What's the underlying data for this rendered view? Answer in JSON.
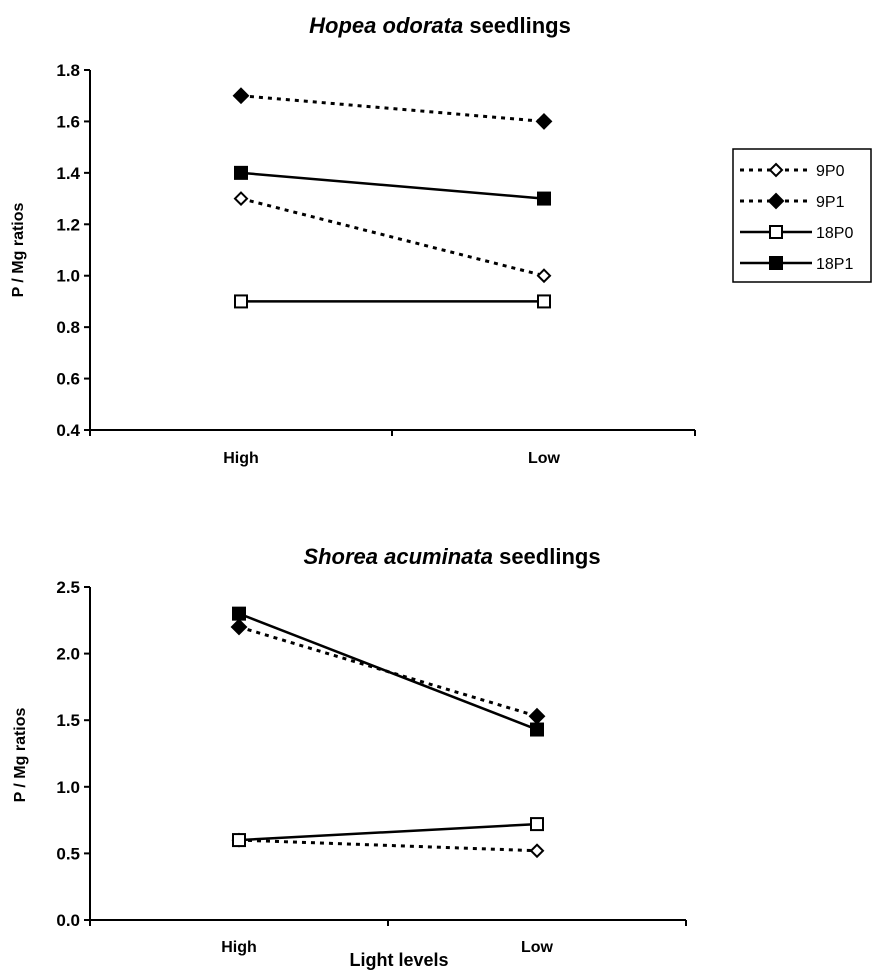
{
  "chart_data": [
    {
      "type": "line",
      "title_species": "Hopea odorata",
      "title_suffix": "seedlings",
      "ylabel": "P / Mg ratios",
      "xlabel": "",
      "categories": [
        "High",
        "Low"
      ],
      "ylim": [
        0.4,
        1.8
      ],
      "yticks": [
        "0.4",
        "0.6",
        "0.8",
        "1.0",
        "1.2",
        "1.4",
        "1.6",
        "1.8"
      ],
      "legend_position": "right",
      "series": [
        {
          "name": "9P0",
          "values": [
            1.3,
            1.0
          ],
          "line": "dotted",
          "marker": "diamond-open"
        },
        {
          "name": "9P1",
          "values": [
            1.7,
            1.6
          ],
          "line": "dotted",
          "marker": "diamond-filled"
        },
        {
          "name": "18P0",
          "values": [
            0.9,
            0.9
          ],
          "line": "solid",
          "marker": "square-open"
        },
        {
          "name": "18P1",
          "values": [
            1.4,
            1.3
          ],
          "line": "solid",
          "marker": "square-filled"
        }
      ]
    },
    {
      "type": "line",
      "title_species": "Shorea acuminata",
      "title_suffix": "seedlings",
      "ylabel": "P / Mg ratios",
      "xlabel": "Light levels",
      "categories": [
        "High",
        "Low"
      ],
      "ylim": [
        0.0,
        2.5
      ],
      "yticks": [
        "0.0",
        "0.5",
        "1.0",
        "1.5",
        "2.0",
        "2.5"
      ],
      "series": [
        {
          "name": "9P0",
          "values": [
            0.6,
            0.52
          ],
          "line": "dotted",
          "marker": "diamond-open"
        },
        {
          "name": "9P1",
          "values": [
            2.2,
            1.53
          ],
          "line": "dotted",
          "marker": "diamond-filled"
        },
        {
          "name": "18P0",
          "values": [
            0.6,
            0.72
          ],
          "line": "solid",
          "marker": "square-open"
        },
        {
          "name": "18P1",
          "values": [
            2.3,
            1.43
          ],
          "line": "solid",
          "marker": "square-filled"
        }
      ]
    }
  ]
}
